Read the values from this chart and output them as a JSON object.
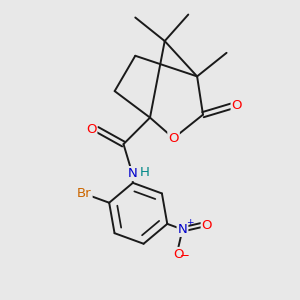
{
  "bg_color": "#e8e8e8",
  "bond_color": "#1a1a1a",
  "bond_width": 1.4,
  "atom_colors": {
    "O": "#ff0000",
    "N": "#0000cc",
    "Br": "#cc6600",
    "H": "#008888",
    "C": "#1a1a1a"
  },
  "font_size": 8.5,
  "fig_size": [
    3.0,
    3.0
  ],
  "dpi": 100
}
